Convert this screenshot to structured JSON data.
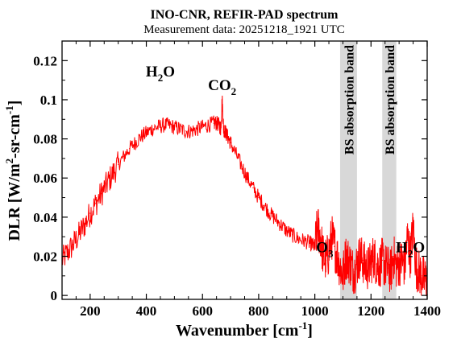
{
  "chart_data": {
    "type": "line",
    "title": "INO-CNR, REFIR-PAD spectrum",
    "subtitle": "Measurement data: 20251218_1921 UTC",
    "xlabel": {
      "main": "Wavenumber [cm",
      "sup": "-1",
      "close": "]"
    },
    "ylabel": {
      "a": "DLR [W/m",
      "sup1": "2",
      "b": "-sr-cm",
      "sup2": "-1",
      "c": "]"
    },
    "xlim": [
      100,
      1400
    ],
    "ylim": [
      -0.002,
      0.13
    ],
    "xticks": [
      200,
      400,
      600,
      800,
      1000,
      1200,
      1400
    ],
    "yticks": [
      0,
      0.02,
      0.04,
      0.06,
      0.08,
      0.1,
      0.12
    ],
    "ytick_labels": [
      "0",
      "0.02",
      "0.04",
      "0.06",
      "0.08",
      "0.1",
      "0.12"
    ],
    "grid": false,
    "legend": "none",
    "line_color": "#ff0000",
    "band_color": "#d8d8d8",
    "series": [
      {
        "x": [
          100,
          120,
          140,
          160,
          180,
          200,
          220,
          240,
          260,
          280,
          300,
          320,
          340,
          360,
          380,
          400,
          420,
          440,
          460,
          480,
          500,
          520,
          540,
          560,
          580,
          600,
          620,
          640,
          650,
          660,
          665,
          670,
          675,
          680,
          690,
          700,
          720,
          740,
          760,
          780,
          800,
          820,
          840,
          860,
          880,
          900,
          920,
          940,
          960,
          980,
          990,
          1000,
          1010,
          1020,
          1030,
          1040,
          1050,
          1060,
          1070,
          1080,
          1090,
          1100,
          1110,
          1120,
          1130,
          1140,
          1150,
          1160,
          1170,
          1180,
          1190,
          1200,
          1210,
          1220,
          1230,
          1240,
          1250,
          1260,
          1270,
          1280,
          1290,
          1300,
          1310,
          1320,
          1330,
          1340,
          1350,
          1360,
          1370,
          1380,
          1390,
          1400
        ],
        "y": [
          0.018,
          0.022,
          0.026,
          0.031,
          0.036,
          0.042,
          0.047,
          0.052,
          0.057,
          0.062,
          0.067,
          0.071,
          0.075,
          0.078,
          0.081,
          0.083,
          0.085,
          0.086,
          0.087,
          0.087,
          0.086,
          0.085,
          0.084,
          0.084,
          0.085,
          0.086,
          0.087,
          0.088,
          0.088,
          0.087,
          0.085,
          0.1,
          0.085,
          0.084,
          0.081,
          0.078,
          0.072,
          0.066,
          0.06,
          0.055,
          0.05,
          0.046,
          0.042,
          0.039,
          0.036,
          0.033,
          0.031,
          0.029,
          0.028,
          0.027,
          0.026,
          0.025,
          0.035,
          0.03,
          0.02,
          0.018,
          0.022,
          0.03,
          0.025,
          0.02,
          0.015,
          0.01,
          0.02,
          0.018,
          0.015,
          0.012,
          0.016,
          0.02,
          0.018,
          0.015,
          0.014,
          0.017,
          0.02,
          0.016,
          0.015,
          0.018,
          0.015,
          0.014,
          0.012,
          0.02,
          0.015,
          0.016,
          0.018,
          0.015,
          0.03,
          0.02,
          0.035,
          0.015,
          0.012,
          0.01,
          0.008,
          0.009
        ]
      }
    ],
    "annotations": [
      {
        "id": "h2o-left",
        "x": 450,
        "y": 0.112,
        "base": "H",
        "sub": "2",
        "tail": "O"
      },
      {
        "id": "co2",
        "x": 670,
        "y": 0.105,
        "base": "CO",
        "sub": "2",
        "tail": ""
      },
      {
        "id": "o3",
        "x": 1035,
        "y": 0.022,
        "base": "O",
        "sub": "3",
        "tail": ""
      },
      {
        "id": "h2o-right",
        "x": 1340,
        "y": 0.022,
        "base": "H",
        "sub": "2",
        "tail": "O"
      }
    ],
    "bands": [
      {
        "label": "BS absorption band",
        "x0": 1090,
        "x1": 1150
      },
      {
        "label": "BS absorption band",
        "x0": 1240,
        "x1": 1290
      }
    ]
  }
}
